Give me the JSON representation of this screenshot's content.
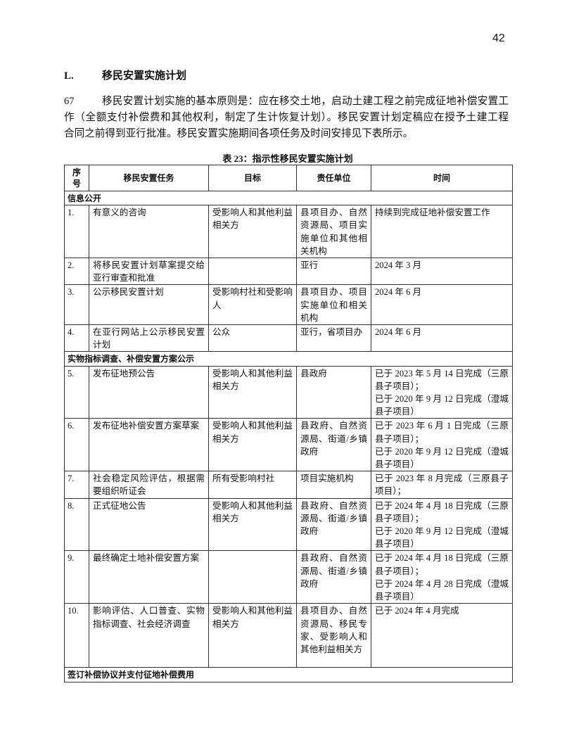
{
  "page_number": "42",
  "section": {
    "number": "L.",
    "title": "移民安置实施计划"
  },
  "paragraph": {
    "number": "67",
    "lines": [
      "移民安置计划实施的基本原则是：应在移交土地，启动土建工程之前完成征地补偿安置工",
      "作（全额支付补偿费和其他权利，制定了生计恢复计划）。移民安置计划定稿应在授予土建工程",
      "合同之前得到亚行批准。移民安置实施期间各项任务及时间安排见下表所示。"
    ]
  },
  "table": {
    "caption": "表 23：指示性移民安置实施计划",
    "headers": [
      "序号",
      "移民安置任务",
      "目标",
      "责任单位",
      "时间"
    ],
    "groups": [
      {
        "title": "信息公开",
        "rows": [
          {
            "no": "1.",
            "task": "有意义的咨询",
            "target": "受影响人和其他利益相关方",
            "unit": "县项目办、自然资源局、项目实施单位和其他相关机构",
            "time": [
              "持续到完成征地补偿安置工作"
            ]
          },
          {
            "no": "2.",
            "task": "将移民安置计划草案提交给亚行审查和批准",
            "target": "",
            "unit": "亚行",
            "time": [
              "2024 年 3 月"
            ]
          },
          {
            "no": "3.",
            "task": "公示移民安置计划",
            "target": "受影响村社和受影响人",
            "unit": "县项目办、项目实施单位和相关机构",
            "time": [
              "2024 年 6 月"
            ]
          },
          {
            "no": "4.",
            "task": "在亚行网站上公示移民安置计划",
            "target": "公众",
            "unit": "亚行，省项目办",
            "time": [
              "2024 年 6 月"
            ]
          }
        ]
      },
      {
        "title": "实物指标调查、补偿安置方案公示",
        "rows": [
          {
            "no": "5.",
            "task": "发布征地预公告",
            "target": "受影响人和其他利益相关方",
            "unit": "县政府",
            "time": [
              "已于 2023 年 5 月 14 日完成（三原县子项目）；",
              "已于 2020 年 9 月 12 日完成（澄城县子项目）"
            ]
          },
          {
            "no": "6.",
            "task": "发布征地补偿安置方案草案",
            "target": "受影响人和其他利益相关方",
            "unit": "县政府、自然资源局、街道/乡镇政府",
            "time": [
              "已于 2023 年 6 月 1 日完成（三原县子项目）；",
              "已于 2020 年 9 月 12 日完成（澄城县子项目）"
            ]
          },
          {
            "no": "7.",
            "task": "社会稳定风险评估，根据需要组织听证会",
            "target": "所有受影响村社",
            "unit": "项目实施机构",
            "time": [
              "已于 2023 年 8 月完成（三原县子项目）；"
            ]
          },
          {
            "no": "8.",
            "task": "正式征地公告",
            "target": "受影响人和其他利益相关方",
            "unit": "县政府、自然资源局、街道/乡镇政府",
            "time": [
              "已于 2024 年 4 月 18 日完成（三原县子项目）；",
              "已于 2020 年 9 月 12 日完成（澄城县子项目）"
            ]
          },
          {
            "no": "9.",
            "task": "最终确定土地补偿安置方案",
            "target": "",
            "unit": "县政府、自然资源局、街道/乡镇政府",
            "time": [
              "已于 2024 年 4 月 18 日完成（三原县子项目）；",
              "已于 2024 年 4 月 28 日完成（澄城县子项目）"
            ]
          },
          {
            "no": "10.",
            "task": "影响评估、人口普查、实物指标调查、社会经济调查",
            "target": "受影响人和其他利益相关方",
            "unit": "县项目办、自然资源局、移民专家、受影响人和其他利益相关方",
            "time": [
              "已于 2024 年 4 月完成"
            ]
          }
        ]
      },
      {
        "title": "签订补偿协议并支付征地补偿费用",
        "rows": []
      }
    ]
  }
}
